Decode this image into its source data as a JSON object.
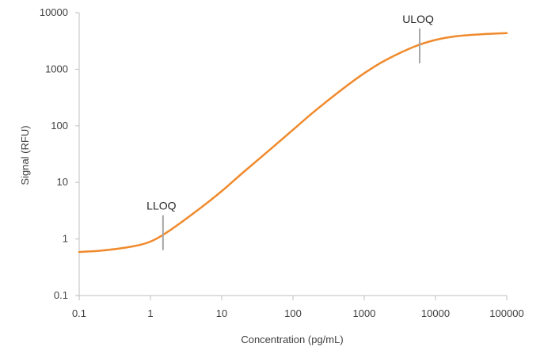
{
  "chart_data": {
    "type": "line",
    "title": "",
    "xlabel": "Concentration (pg/mL)",
    "ylabel": "Signal (RFU)",
    "x_scale": "log",
    "y_scale": "log",
    "xlim": [
      0.1,
      100000
    ],
    "ylim": [
      0.1,
      10000
    ],
    "x_ticks": [
      0.1,
      1,
      10,
      100,
      1000,
      10000,
      100000
    ],
    "x_tick_labels": [
      "0.1",
      "1",
      "10",
      "100",
      "1000",
      "10000",
      "100000"
    ],
    "y_ticks": [
      0.1,
      1,
      10,
      100,
      1000,
      10000
    ],
    "y_tick_labels": [
      "0.1",
      "1",
      "10",
      "100",
      "1000",
      "10000"
    ],
    "grid": false,
    "legend": "none",
    "series": [
      {
        "color": "#F08A2C",
        "x": [
          0.1,
          0.2,
          0.5,
          1,
          2,
          5,
          10,
          20,
          50,
          100,
          200,
          500,
          1000,
          2000,
          5000,
          10000,
          20000,
          50000,
          100000
        ],
        "y": [
          0.59,
          0.62,
          0.72,
          0.9,
          1.5,
          3.5,
          7,
          15,
          40,
          85,
          180,
          450,
          850,
          1450,
          2500,
          3300,
          3850,
          4200,
          4350
        ]
      }
    ],
    "annotations": [
      {
        "label": "LLOQ",
        "x": 1.5,
        "y": 1.1
      },
      {
        "label": "ULOQ",
        "x": 6000,
        "y": 2200
      }
    ]
  }
}
